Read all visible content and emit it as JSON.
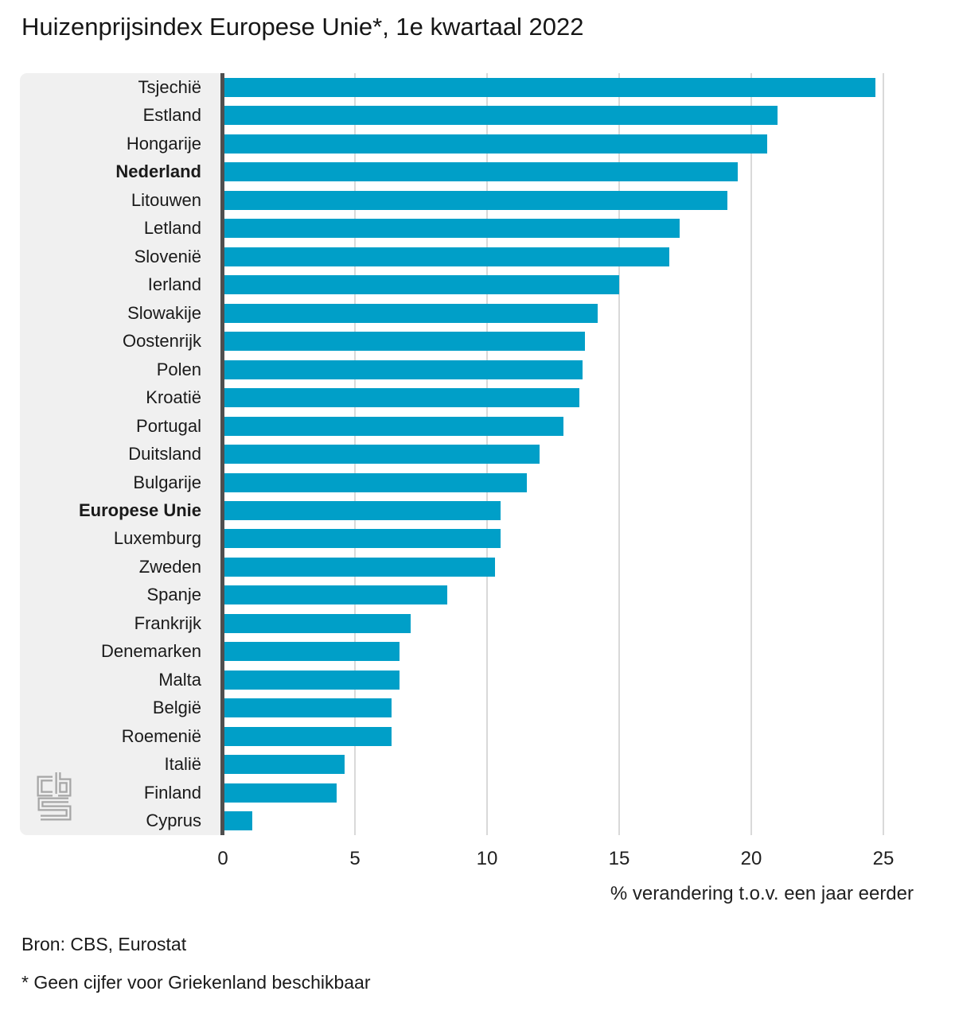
{
  "title": "Huizenprijsindex Europese Unie*, 1e kwartaal 2022",
  "source": "Bron: CBS, Eurostat",
  "footnote": "* Geen cijfer voor Griekenland beschikbaar",
  "logo": "cbs-logo",
  "colors": {
    "bar": "#009fc8",
    "label_panel": "#f0f0f0",
    "gridline": "#d9d9d9",
    "axis_line": "#4f4f4f",
    "text": "#1a1a1a",
    "logo": "#a6a6a6"
  },
  "chart_data": {
    "type": "bar",
    "orientation": "horizontal",
    "title": "Huizenprijsindex Europese Unie*, 1e kwartaal 2022",
    "xlabel": "% verandering t.o.v. een jaar eerder",
    "ylabel": "",
    "xlim": [
      0,
      25
    ],
    "xticks": [
      0,
      5,
      10,
      15,
      20,
      25
    ],
    "grid": true,
    "legend": "none",
    "categories": [
      "Tsjechië",
      "Estland",
      "Hongarije",
      "Nederland",
      "Litouwen",
      "Letland",
      "Slovenië",
      "Ierland",
      "Slowakije",
      "Oostenrijk",
      "Polen",
      "Kroatië",
      "Portugal",
      "Duitsland",
      "Bulgarije",
      "Europese Unie",
      "Luxemburg",
      "Zweden",
      "Spanje",
      "Frankrijk",
      "Denemarken",
      "Malta",
      "België",
      "Roemenië",
      "Italië",
      "Finland",
      "Cyprus"
    ],
    "values": [
      24.7,
      21.0,
      20.6,
      19.5,
      19.1,
      17.3,
      16.9,
      15.0,
      14.2,
      13.7,
      13.6,
      13.5,
      12.9,
      12.0,
      11.5,
      10.5,
      10.5,
      10.3,
      8.5,
      7.1,
      6.7,
      6.7,
      6.4,
      6.4,
      4.6,
      4.3,
      1.1
    ],
    "highlighted_categories": [
      "Nederland",
      "Europese Unie"
    ]
  }
}
